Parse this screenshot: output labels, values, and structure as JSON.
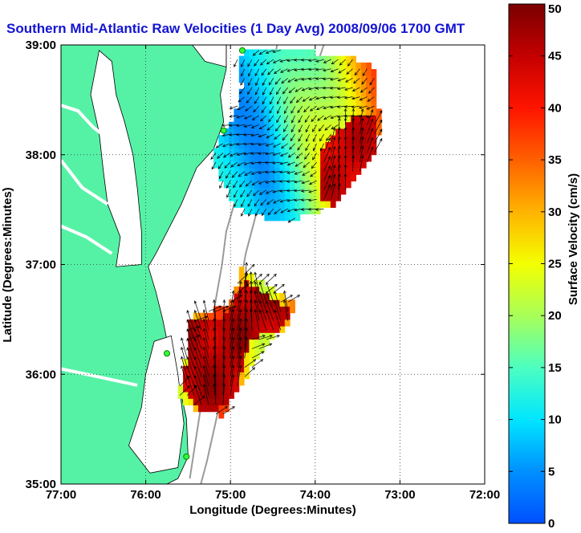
{
  "chart_data": {
    "type": "heatmap",
    "title": "Southern Mid-Atlantic Raw Velocities (1 Day Avg) 2008/09/06 1700 GMT",
    "xlabel": "Longitude (Degrees:Minutes)",
    "ylabel": "Latitude (Degrees:Minutes)",
    "colorbar_label": "Surface Velocity (cm/s)",
    "xlim": [
      -77,
      -72
    ],
    "ylim": [
      35,
      39
    ],
    "x_ticks": [
      {
        "value": -77,
        "label": "77:00"
      },
      {
        "value": -76,
        "label": "76:00"
      },
      {
        "value": -75,
        "label": "75:00"
      },
      {
        "value": -74,
        "label": "74:00"
      },
      {
        "value": -73,
        "label": "73:00"
      },
      {
        "value": -72,
        "label": "72:00"
      }
    ],
    "y_ticks": [
      {
        "value": 35,
        "label": "35:00"
      },
      {
        "value": 36,
        "label": "36:00"
      },
      {
        "value": 37,
        "label": "37:00"
      },
      {
        "value": 38,
        "label": "38:00"
      },
      {
        "value": 39,
        "label": "39:00"
      }
    ],
    "colorbar_range": [
      0,
      50
    ],
    "colorbar_ticks": [
      0,
      5,
      10,
      15,
      20,
      25,
      30,
      35,
      40,
      45,
      50
    ],
    "grid": true,
    "grid_style": "dotted",
    "land_color": "#55f2a6",
    "title_color": "#1414d2",
    "sites": [
      {
        "lon": -74.86,
        "lat": 38.95
      },
      {
        "lon": -75.08,
        "lat": 38.22
      },
      {
        "lon": -75.75,
        "lat": 36.19
      },
      {
        "lon": -75.52,
        "lat": 35.25
      }
    ],
    "regions": [
      {
        "name": "",
        "speed_center": [
          -74.15,
          38.15
        ],
        "polygon": [
          [
            -74.94,
            38.91
          ],
          [
            -74.66,
            38.97
          ],
          [
            -73.84,
            38.92
          ],
          [
            -73.33,
            38.84
          ],
          [
            -73.27,
            38.62
          ],
          [
            -73.23,
            38.25
          ],
          [
            -73.31,
            37.98
          ],
          [
            -73.53,
            37.8
          ],
          [
            -73.78,
            37.52
          ],
          [
            -74.22,
            37.42
          ],
          [
            -74.6,
            37.43
          ],
          [
            -74.95,
            37.53
          ],
          [
            -75.12,
            37.78
          ],
          [
            -75.22,
            38.02
          ],
          [
            -74.97,
            38.32
          ],
          [
            -74.86,
            38.64
          ]
        ],
        "hot_polygon": [
          [
            -73.56,
            38.34
          ],
          [
            -73.27,
            38.33
          ],
          [
            -73.23,
            38.05
          ],
          [
            -73.28,
            37.9
          ],
          [
            -73.52,
            37.72
          ],
          [
            -73.78,
            37.52
          ],
          [
            -73.96,
            37.62
          ],
          [
            -73.97,
            37.93
          ],
          [
            -73.86,
            38.12
          ]
        ],
        "hot_speed": 44
      },
      {
        "name": "",
        "speed_center": [
          -74.7,
          36.1
        ],
        "polygon": [
          [
            -74.9,
            36.98
          ],
          [
            -74.56,
            36.82
          ],
          [
            -74.2,
            36.63
          ],
          [
            -74.34,
            36.44
          ],
          [
            -74.55,
            36.3
          ],
          [
            -74.88,
            35.9
          ],
          [
            -75.1,
            35.62
          ],
          [
            -75.39,
            35.67
          ],
          [
            -75.63,
            35.79
          ],
          [
            -75.5,
            36.21
          ],
          [
            -75.53,
            36.43
          ],
          [
            -75.44,
            36.55
          ],
          [
            -75.1,
            36.61
          ],
          [
            -74.94,
            36.72
          ]
        ],
        "hot_polygon": [
          [
            -74.82,
            36.85
          ],
          [
            -74.25,
            36.56
          ],
          [
            -74.4,
            36.4
          ],
          [
            -74.78,
            36.32
          ],
          [
            -74.95,
            35.72
          ],
          [
            -75.32,
            35.66
          ],
          [
            -75.55,
            35.85
          ],
          [
            -75.49,
            36.47
          ],
          [
            -75.1,
            36.52
          ]
        ],
        "hot_speed": 46
      }
    ],
    "vector_scale_note": "arrows show current direction; length scaled by speed"
  }
}
